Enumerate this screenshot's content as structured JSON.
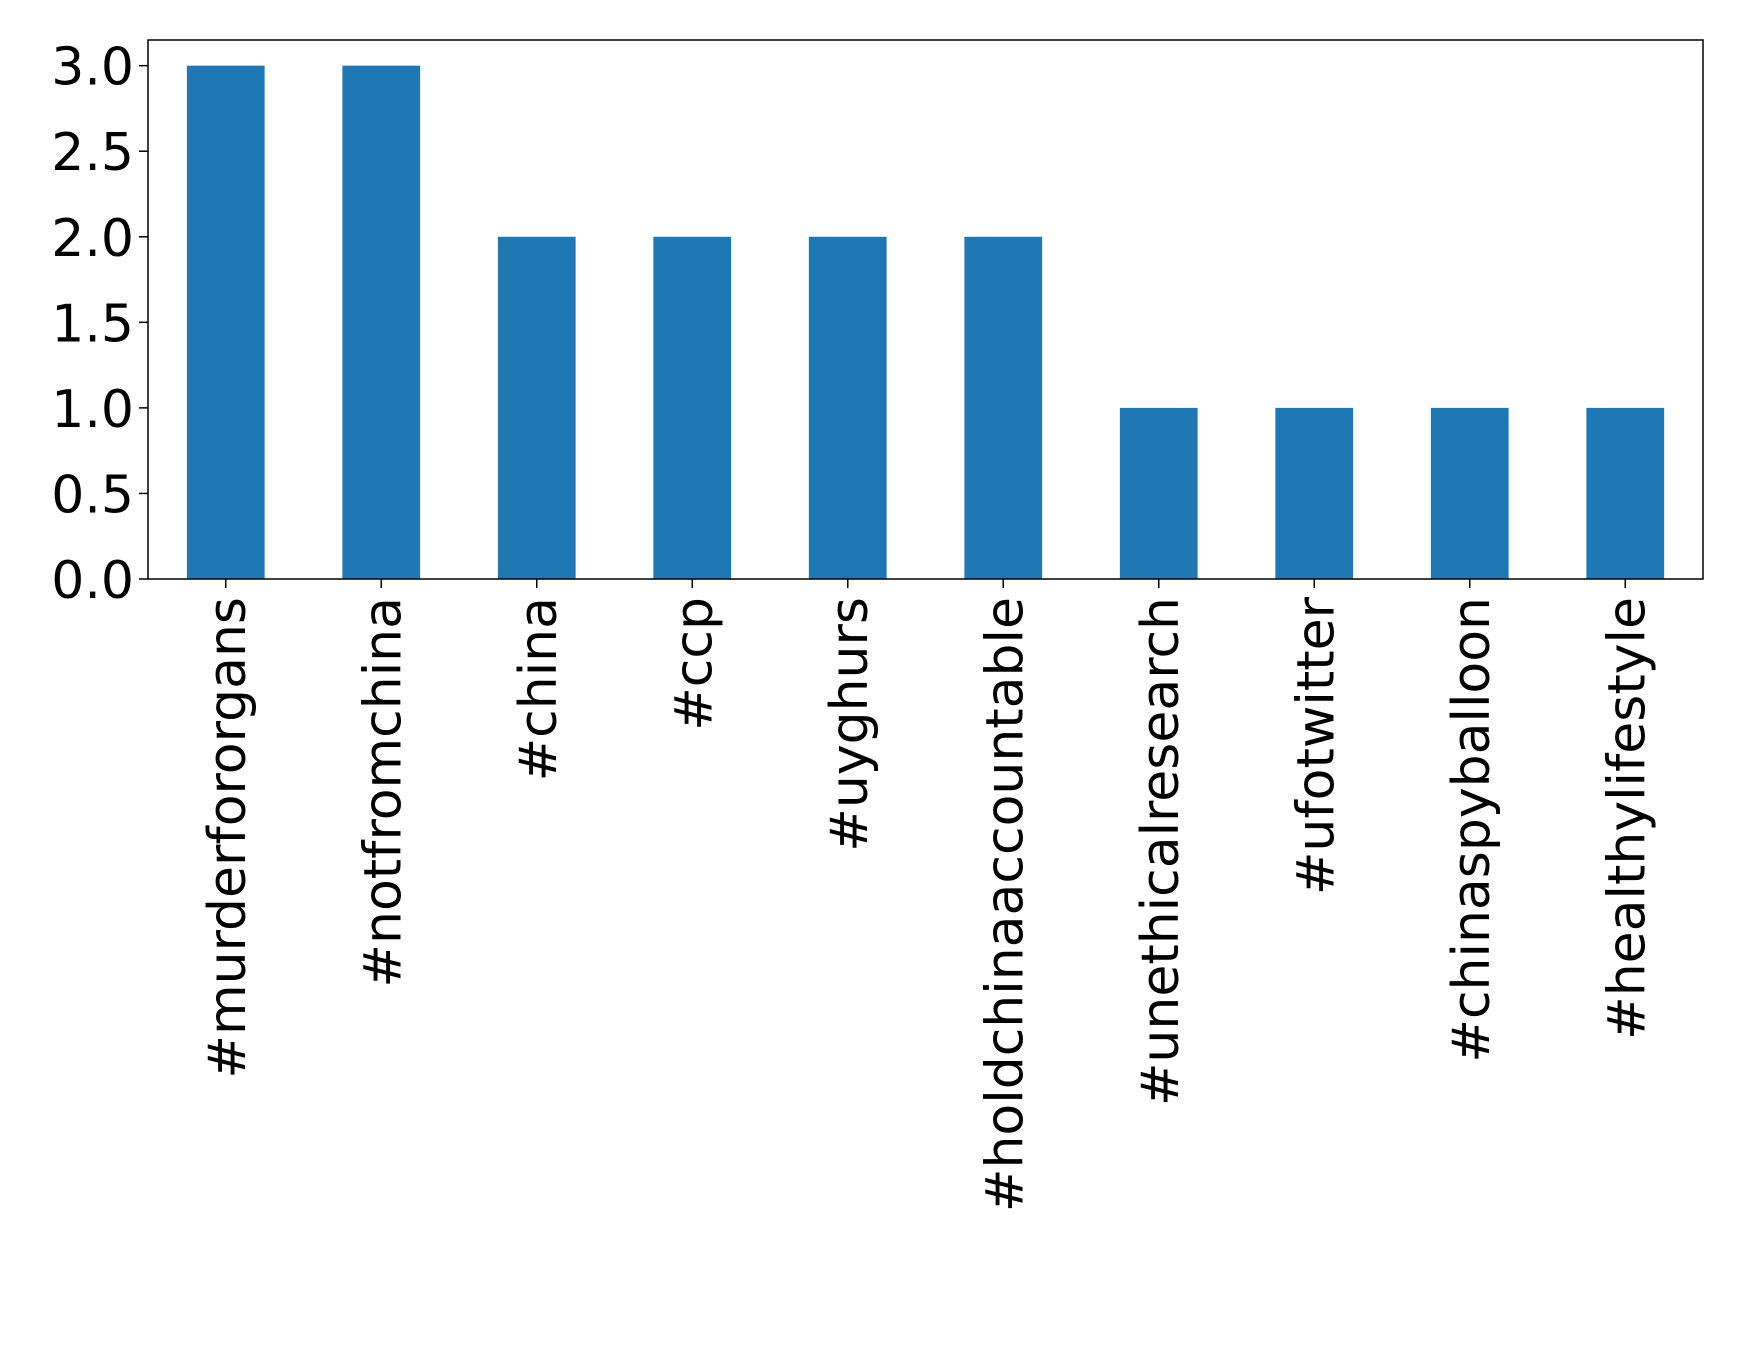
{
  "chart_data": {
    "type": "bar",
    "title": "",
    "xlabel": "",
    "ylabel": "",
    "categories": [
      "#murderfororgans",
      "#notfromchina",
      "#china",
      "#ccp",
      "#uyghurs",
      "#holdchinaaccountable",
      "#unethicalresearch",
      "#ufotwitter",
      "#chinaspyballoon",
      "#healthylifestyle"
    ],
    "values": [
      3,
      3,
      2,
      2,
      2,
      2,
      1,
      1,
      1,
      1
    ],
    "ylim": [
      0,
      3.15
    ],
    "yticks": [
      0.0,
      0.5,
      1.0,
      1.5,
      2.0,
      2.5,
      3.0
    ],
    "ytick_labels": [
      "0.0",
      "0.5",
      "1.0",
      "1.5",
      "2.0",
      "2.5",
      "3.0"
    ],
    "bar_color": "#1f77b4",
    "grid": false,
    "legend": "none"
  }
}
